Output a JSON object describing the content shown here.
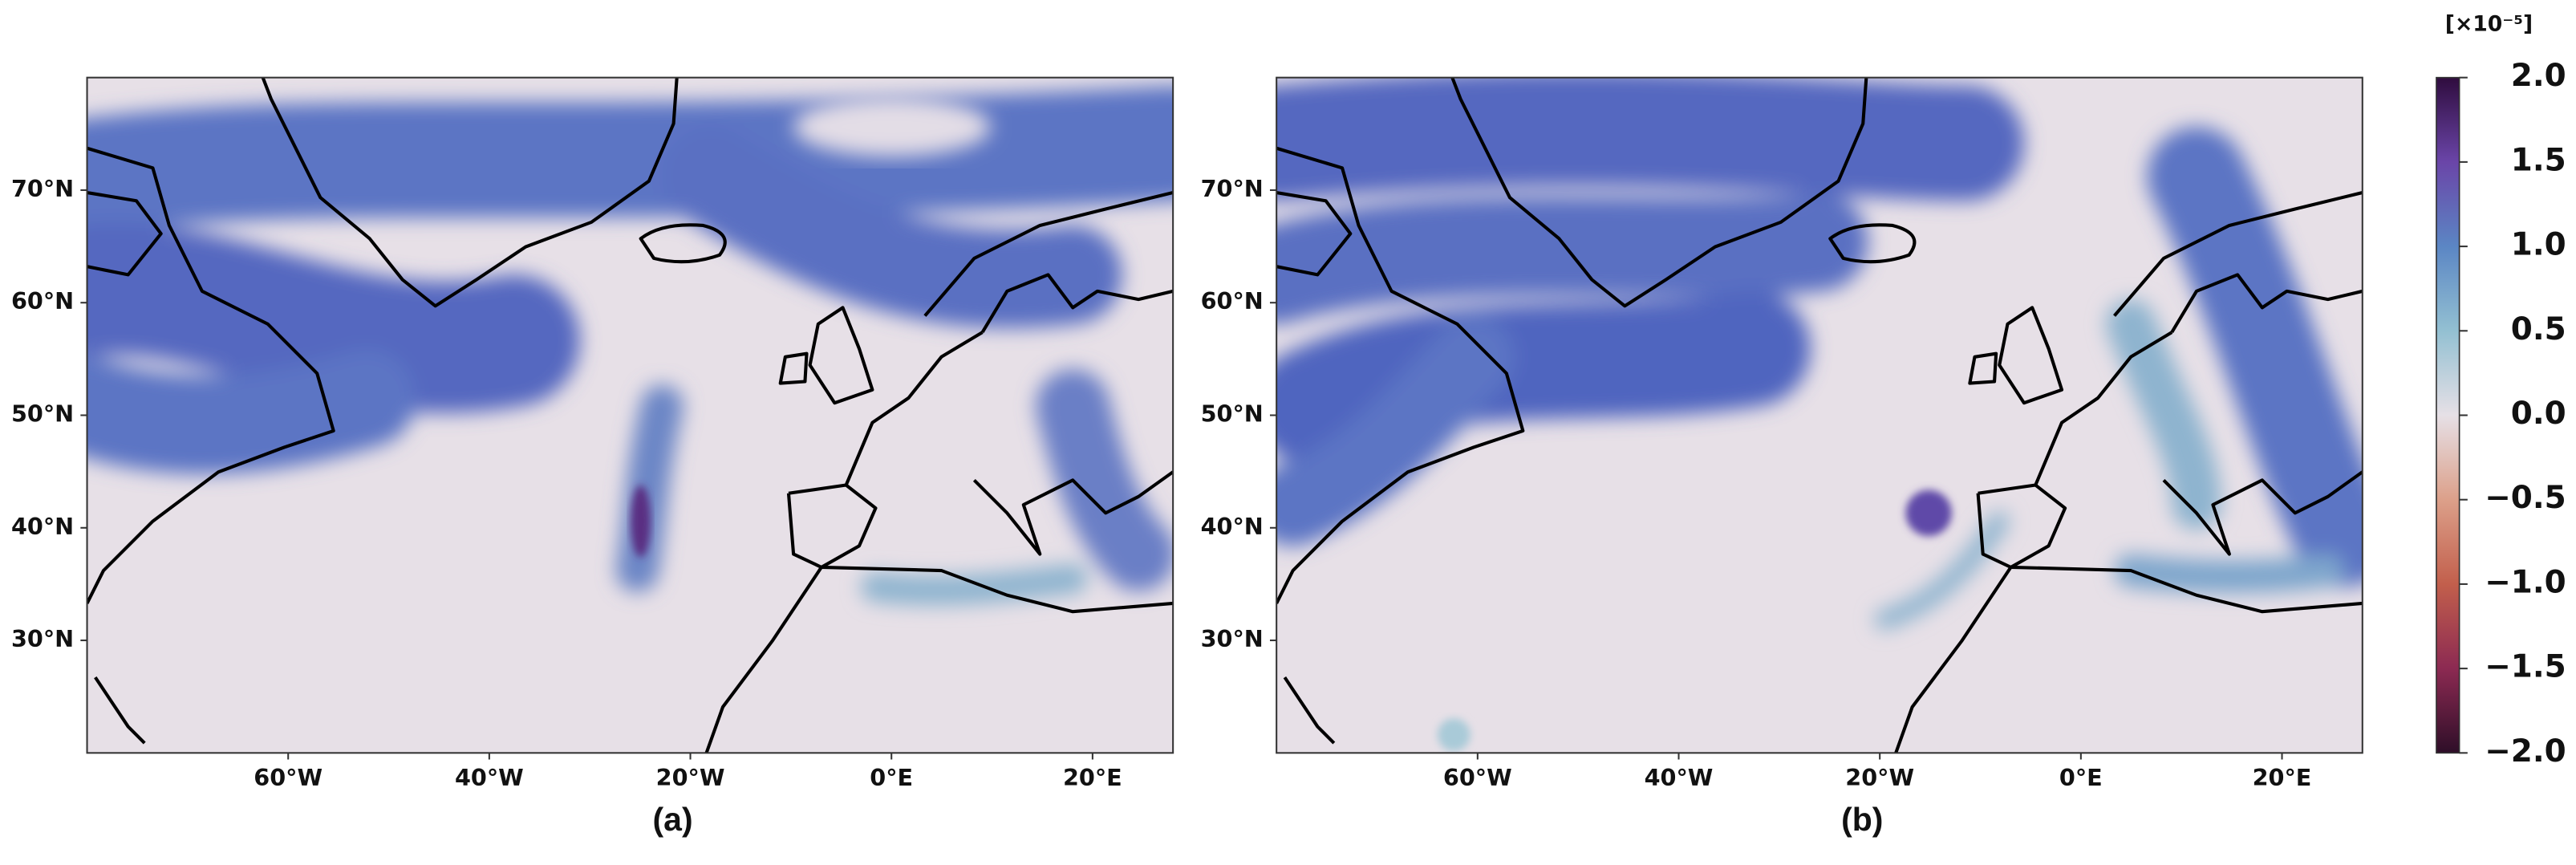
{
  "panels": [
    {
      "label": "(a)",
      "lonlim": [
        -80,
        28
      ],
      "latlim": [
        20,
        80
      ],
      "lon_ticks": [
        {
          "value": -60,
          "label": "60°W"
        },
        {
          "value": -40,
          "label": "40°W"
        },
        {
          "value": -20,
          "label": "20°W"
        },
        {
          "value": 0,
          "label": "0°E"
        },
        {
          "value": 20,
          "label": "20°E"
        }
      ],
      "lat_ticks": [
        {
          "value": 70,
          "label": "70°N"
        },
        {
          "value": 60,
          "label": "60°N"
        },
        {
          "value": 50,
          "label": "50°N"
        },
        {
          "value": 40,
          "label": "40°N"
        },
        {
          "value": 30,
          "label": "30°N"
        }
      ]
    },
    {
      "label": "(b)",
      "lonlim": [
        -80,
        28
      ],
      "latlim": [
        20,
        80
      ],
      "lon_ticks": [
        {
          "value": -60,
          "label": "60°W"
        },
        {
          "value": -40,
          "label": "40°W"
        },
        {
          "value": -20,
          "label": "20°W"
        },
        {
          "value": 0,
          "label": "0°E"
        },
        {
          "value": 20,
          "label": "20°E"
        }
      ],
      "lat_ticks": [
        {
          "value": 70,
          "label": "70°N"
        },
        {
          "value": 60,
          "label": "60°N"
        },
        {
          "value": 50,
          "label": "50°N"
        },
        {
          "value": 40,
          "label": "40°N"
        },
        {
          "value": 30,
          "label": "30°N"
        }
      ]
    }
  ],
  "colorbar": {
    "unit": "[×10⁻⁵]",
    "range": [
      -2,
      2
    ],
    "ticks": [
      {
        "value": 2,
        "label": "2.0"
      },
      {
        "value": 1.5,
        "label": "1.5"
      },
      {
        "value": 1,
        "label": "1.0"
      },
      {
        "value": 0.5,
        "label": "0.5"
      },
      {
        "value": 0,
        "label": "0.0"
      },
      {
        "value": -0.5,
        "label": "−0.5"
      },
      {
        "value": -1,
        "label": "−1.0"
      },
      {
        "value": -1.5,
        "label": "−1.5"
      },
      {
        "value": -2,
        "label": "−2.0"
      }
    ]
  }
}
